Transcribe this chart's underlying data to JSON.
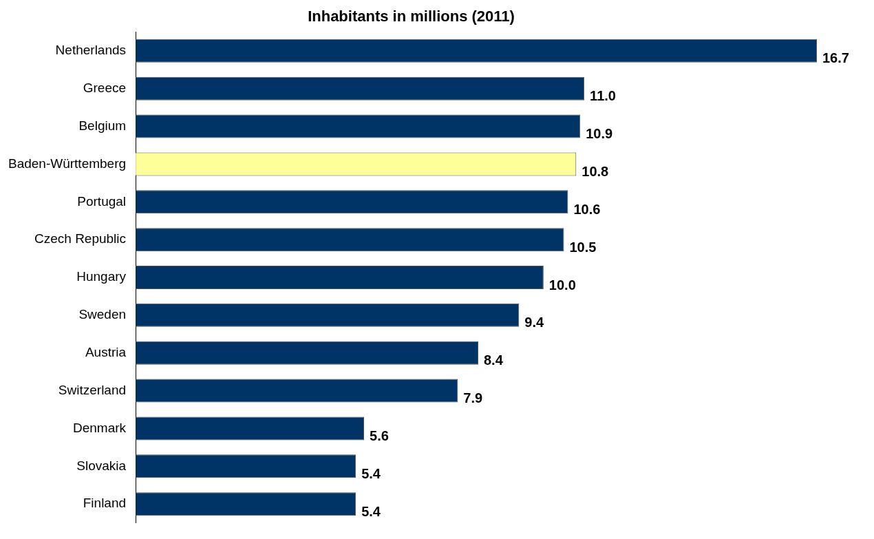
{
  "chart_data": {
    "type": "bar",
    "orientation": "horizontal",
    "title": "Inhabitants in millions (2011)",
    "categories": [
      "Netherlands",
      "Greece",
      "Belgium",
      "Baden-Württemberg",
      "Portugal",
      "Czech Republic",
      "Hungary",
      "Sweden",
      "Austria",
      "Switzerland",
      "Denmark",
      "Slovakia",
      "Finland"
    ],
    "values": [
      16.7,
      11.0,
      10.9,
      10.8,
      10.6,
      10.5,
      10.0,
      9.4,
      8.4,
      7.9,
      5.6,
      5.4,
      5.4
    ],
    "value_labels": [
      "16.7",
      "11.0",
      "10.9",
      "10.8",
      "10.6",
      "10.5",
      "10.0",
      "9.4",
      "8.4",
      "7.9",
      "5.6",
      "5.4",
      "5.4"
    ],
    "colors": [
      "#003366",
      "#003366",
      "#003366",
      "#ffff99",
      "#003366",
      "#003366",
      "#003366",
      "#003366",
      "#003366",
      "#003366",
      "#003366",
      "#003366",
      "#003366"
    ],
    "grid": false,
    "legend": false
  }
}
